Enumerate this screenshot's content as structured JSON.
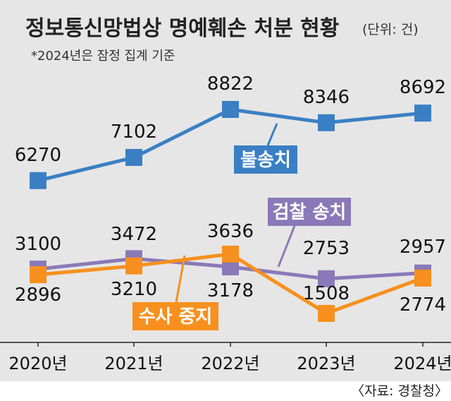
{
  "title": "정보통신망법상 명예훼손 처분 현황",
  "unit": "(단위: 건)",
  "note": "*2024년은 잠정 집계 기준",
  "source": "〈자료: 경찰청〉",
  "colors": {
    "background": "#e6e6e6",
    "blue": "#3a7fc4",
    "purple": "#8a79b8",
    "orange": "#f7901e"
  },
  "chart_data": {
    "type": "line",
    "categories": [
      "2020년",
      "2021년",
      "2022년",
      "2023년",
      "2024년"
    ],
    "ylim": [
      0,
      10000
    ],
    "grid": false,
    "legend": "inline labels",
    "series": [
      {
        "name": "불송치",
        "color": "#3a7fc4",
        "values": [
          6270,
          7102,
          8822,
          8346,
          8692
        ]
      },
      {
        "name": "검찰 송치",
        "color": "#8a79b8",
        "values": [
          3100,
          3472,
          3178,
          2753,
          2957
        ]
      },
      {
        "name": "수사 중지",
        "color": "#f7901e",
        "values": [
          2896,
          3210,
          3636,
          1508,
          2774
        ]
      }
    ]
  }
}
